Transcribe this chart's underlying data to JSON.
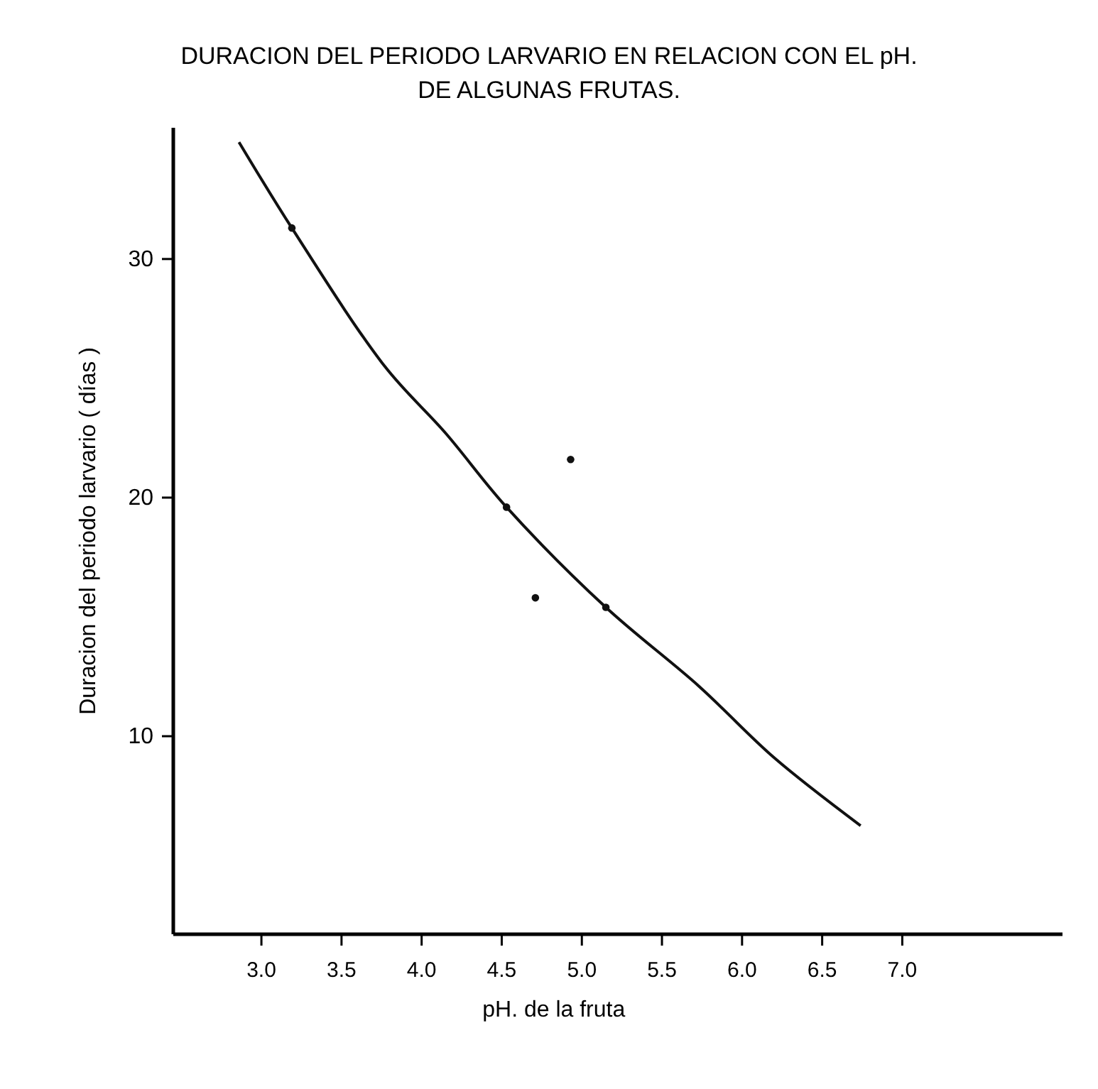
{
  "chart_data": {
    "type": "line",
    "title": "DURACION DEL PERIODO LARVARIO EN RELACION CON EL pH.\nDE ALGUNAS FRUTAS.",
    "xlabel": "pH. de la fruta",
    "ylabel": "Duracion del periodo larvario  ( días )",
    "xlim": [
      2.45,
      8.0
    ],
    "ylim": [
      1.7,
      35.5
    ],
    "xticks": [
      {
        "value": 3,
        "label": "3.0"
      },
      {
        "value": 3.5,
        "label": "3.5"
      },
      {
        "value": 4,
        "label": "4.0"
      },
      {
        "value": 4.5,
        "label": "4.5"
      },
      {
        "value": 5,
        "label": "5.0"
      },
      {
        "value": 5.5,
        "label": "5.5"
      },
      {
        "value": 6,
        "label": "6.0"
      },
      {
        "value": 6.5,
        "label": "6.5"
      },
      {
        "value": 7,
        "label": "7.0"
      }
    ],
    "yticks": [
      10,
      20,
      30
    ],
    "grid": false,
    "series": [
      {
        "color": "#111111",
        "marker": "none",
        "x": [
          2.86,
          3.19,
          3.77,
          4.15,
          4.53,
          5.15,
          5.73,
          6.2,
          6.74
        ],
        "values": [
          34.9,
          31.3,
          25.5,
          22.7,
          19.6,
          15.4,
          12.1,
          9.1,
          6.25
        ]
      },
      {
        "type": "scatter",
        "color": "#111111",
        "marker": "circle",
        "x": [
          3.19,
          4.53,
          4.71,
          4.93,
          5.15
        ],
        "values": [
          31.3,
          19.6,
          15.8,
          21.6,
          15.4
        ]
      }
    ]
  }
}
